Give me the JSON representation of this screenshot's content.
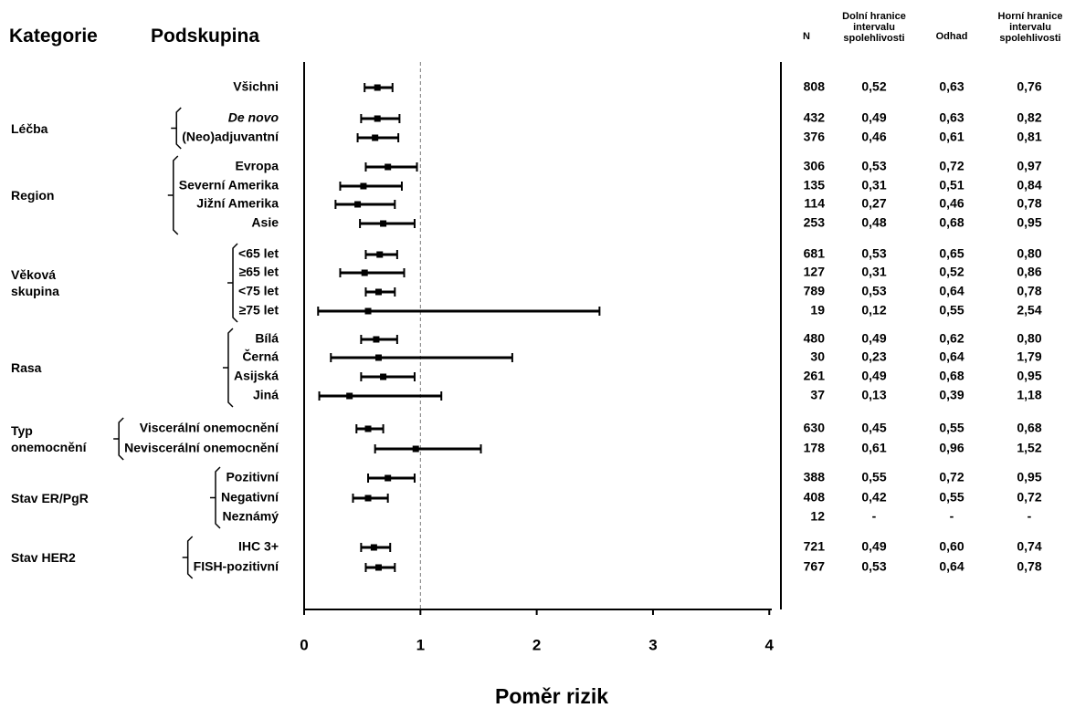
{
  "chart_data": {
    "type": "forest",
    "headers": {
      "category": "Kategorie",
      "subgroup": "Podskupina",
      "n": "N",
      "lower": "Dolní hranice intervalu spolehlivosti",
      "estimate": "Odhad",
      "upper": "Horní hranice intervalu spolehlivosti"
    },
    "xlabel": "Poměr rizik",
    "xlim": [
      0,
      4.1
    ],
    "xticks": [
      0,
      1,
      2,
      3,
      4
    ],
    "reference_line": 1,
    "color": "#000000",
    "groups": [
      {
        "name": null,
        "rows": [
          {
            "name": "Všichni",
            "n": 808,
            "values": [
              0.52,
              0.63,
              0.76
            ],
            "value_labels": [
              "0,52",
              "0,63",
              "0,76"
            ]
          }
        ]
      },
      {
        "name": "Léčba",
        "rows": [
          {
            "name": "De novo",
            "italic": true,
            "n": 432,
            "values": [
              0.49,
              0.63,
              0.82
            ],
            "value_labels": [
              "0,49",
              "0,63",
              "0,82"
            ]
          },
          {
            "name": "(Neo)adjuvantní",
            "n": 376,
            "values": [
              0.46,
              0.61,
              0.81
            ],
            "value_labels": [
              "0,46",
              "0,61",
              "0,81"
            ]
          }
        ]
      },
      {
        "name": "Region",
        "rows": [
          {
            "name": "Evropa",
            "n": 306,
            "values": [
              0.53,
              0.72,
              0.97
            ],
            "value_labels": [
              "0,53",
              "0,72",
              "0,97"
            ]
          },
          {
            "name": "Severní Amerika",
            "n": 135,
            "values": [
              0.31,
              0.51,
              0.84
            ],
            "value_labels": [
              "0,31",
              "0,51",
              "0,84"
            ]
          },
          {
            "name": "Jižní Amerika",
            "n": 114,
            "values": [
              0.27,
              0.46,
              0.78
            ],
            "value_labels": [
              "0,27",
              "0,46",
              "0,78"
            ]
          },
          {
            "name": "Asie",
            "n": 253,
            "values": [
              0.48,
              0.68,
              0.95
            ],
            "value_labels": [
              "0,48",
              "0,68",
              "0,95"
            ]
          }
        ]
      },
      {
        "name": "Věková skupina",
        "rows": [
          {
            "name": "<65 let",
            "n": 681,
            "values": [
              0.53,
              0.65,
              0.8
            ],
            "value_labels": [
              "0,53",
              "0,65",
              "0,80"
            ]
          },
          {
            "name": "≥65 let",
            "n": 127,
            "values": [
              0.31,
              0.52,
              0.86
            ],
            "value_labels": [
              "0,31",
              "0,52",
              "0,86"
            ]
          },
          {
            "name": "<75 let",
            "n": 789,
            "values": [
              0.53,
              0.64,
              0.78
            ],
            "value_labels": [
              "0,53",
              "0,64",
              "0,78"
            ]
          },
          {
            "name": "≥75 let",
            "n": 19,
            "values": [
              0.12,
              0.55,
              2.54
            ],
            "value_labels": [
              "0,12",
              "0,55",
              "2,54"
            ]
          }
        ]
      },
      {
        "name": "Rasa",
        "rows": [
          {
            "name": "Bílá",
            "n": 480,
            "values": [
              0.49,
              0.62,
              0.8
            ],
            "value_labels": [
              "0,49",
              "0,62",
              "0,80"
            ]
          },
          {
            "name": "Černá",
            "n": 30,
            "values": [
              0.23,
              0.64,
              1.79
            ],
            "value_labels": [
              "0,23",
              "0,64",
              "1,79"
            ]
          },
          {
            "name": "Asijská",
            "n": 261,
            "values": [
              0.49,
              0.68,
              0.95
            ],
            "value_labels": [
              "0,49",
              "0,68",
              "0,95"
            ]
          },
          {
            "name": "Jiná",
            "n": 37,
            "values": [
              0.13,
              0.39,
              1.18
            ],
            "value_labels": [
              "0,13",
              "0,39",
              "1,18"
            ]
          }
        ]
      },
      {
        "name": "Typ onemocnění",
        "rows": [
          {
            "name": "Viscerální onemocnění",
            "n": 630,
            "values": [
              0.45,
              0.55,
              0.68
            ],
            "value_labels": [
              "0,45",
              "0,55",
              "0,68"
            ]
          },
          {
            "name": "Neviscerální onemocnění",
            "n": 178,
            "values": [
              0.61,
              0.96,
              1.52
            ],
            "value_labels": [
              "0,61",
              "0,96",
              "1,52"
            ]
          }
        ]
      },
      {
        "name": "Stav ER/PgR",
        "rows": [
          {
            "name": "Pozitivní",
            "n": 388,
            "values": [
              0.55,
              0.72,
              0.95
            ],
            "value_labels": [
              "0,55",
              "0,72",
              "0,95"
            ]
          },
          {
            "name": "Negativní",
            "n": 408,
            "values": [
              0.42,
              0.55,
              0.72
            ],
            "value_labels": [
              "0,42",
              "0,55",
              "0,72"
            ]
          },
          {
            "name": "Neznámý",
            "n": 12,
            "values": [
              null,
              null,
              null
            ],
            "value_labels": [
              "-",
              "-",
              "-"
            ]
          }
        ]
      },
      {
        "name": "Stav HER2",
        "rows": [
          {
            "name": "IHC 3+",
            "n": 721,
            "values": [
              0.49,
              0.6,
              0.74
            ],
            "value_labels": [
              "0,49",
              "0,60",
              "0,74"
            ]
          },
          {
            "name": "FISH-pozitivní",
            "n": 767,
            "values": [
              0.53,
              0.64,
              0.78
            ],
            "value_labels": [
              "0,53",
              "0,64",
              "0,78"
            ]
          }
        ]
      }
    ]
  }
}
